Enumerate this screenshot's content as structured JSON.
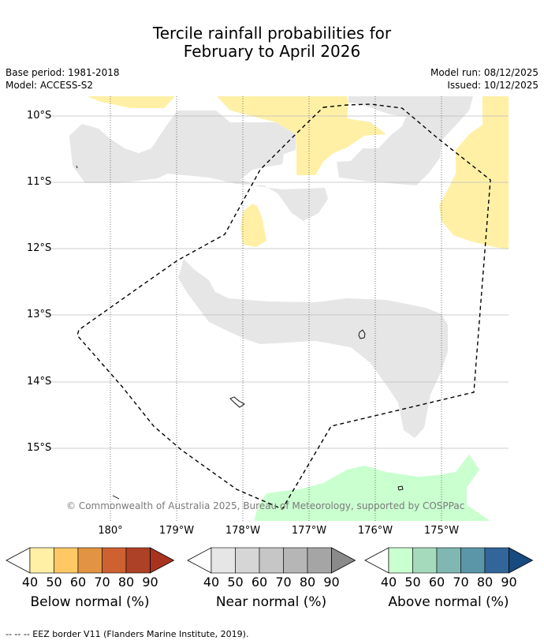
{
  "title_line1": "Tercile rainfall probabilities for",
  "title_line2": "February to April 2026",
  "base_period": "Base period: 1981-2018",
  "model": "Model: ACCESS-S2",
  "model_run": "Model run: 08/12/2025",
  "issued": "Issued: 10/12/2025",
  "lat_labels": [
    "10°S",
    "11°S",
    "12°S",
    "13°S",
    "14°S",
    "15°S"
  ],
  "lon_labels": [
    "180°",
    "179°W",
    "178°W",
    "177°W",
    "176°W",
    "175°W"
  ],
  "copyright": "© Commonwealth of Australia 2025, Bureau of Meteorology, supported by COSPPac",
  "colorbars": [
    {
      "label": "Below normal (%)",
      "colors": [
        "#fff0a6",
        "#fec965",
        "#e29443",
        "#cd6130",
        "#ad4125",
        "#a8341f"
      ],
      "ticks": [
        "40",
        "50",
        "60",
        "70",
        "80",
        "90"
      ]
    },
    {
      "label": "Near normal (%)",
      "colors": [
        "#e6e6e6",
        "#d6d6d6",
        "#c6c6c6",
        "#b6b6b6",
        "#a5a5a5",
        "#8a8a8a"
      ],
      "ticks": [
        "40",
        "50",
        "60",
        "70",
        "80",
        "90"
      ]
    },
    {
      "label": "Above normal (%)",
      "colors": [
        "#caffd0",
        "#a6dabd",
        "#81b7b2",
        "#5b95a8",
        "#326599",
        "#174a7e"
      ],
      "ticks": [
        "40",
        "50",
        "60",
        "70",
        "80",
        "90"
      ]
    }
  ],
  "footer": "--  --  -- EEZ border V11 (Flanders Marine Institute, 2019).",
  "colors": {
    "below_normal_40": "#fff0a6",
    "near_normal_40": "#e6e6e6",
    "above_normal_40": "#caffd0",
    "gridline": "#bdbdbd",
    "eez_border": "#000000"
  }
}
